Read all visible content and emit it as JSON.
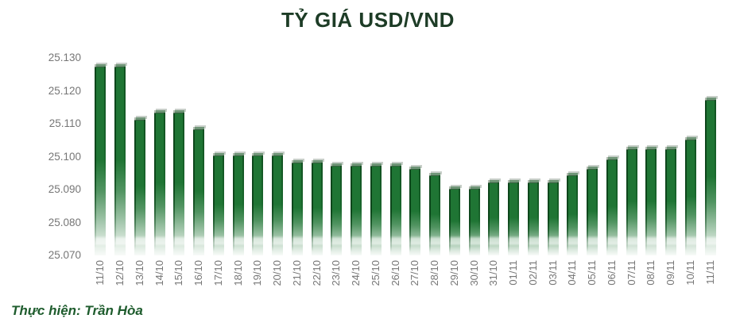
{
  "chart_data": {
    "type": "bar",
    "title": "TỶ GIÁ USD/VND",
    "categories": [
      "11/10",
      "12/10",
      "13/10",
      "14/10",
      "15/10",
      "16/10",
      "17/10",
      "18/10",
      "19/10",
      "20/10",
      "21/10",
      "22/10",
      "23/10",
      "24/10",
      "25/10",
      "26/10",
      "27/10",
      "28/10",
      "29/10",
      "30/10",
      "31/10",
      "01/11",
      "02/11",
      "03/11",
      "04/11",
      "05/11",
      "06/11",
      "07/11",
      "08/11",
      "09/11",
      "10/11",
      "11/11"
    ],
    "values": [
      25.128,
      25.128,
      25.112,
      25.114,
      25.114,
      25.109,
      25.101,
      25.101,
      25.101,
      25.101,
      25.099,
      25.099,
      25.098,
      25.098,
      25.098,
      25.098,
      25.097,
      25.095,
      25.091,
      25.091,
      25.093,
      25.093,
      25.093,
      25.093,
      25.095,
      25.097,
      25.1,
      25.103,
      25.103,
      25.103,
      25.106,
      25.118
    ],
    "ylim": [
      25.07,
      25.13
    ],
    "ytick_step": 0.01,
    "yticks": [
      "25.070",
      "25.080",
      "25.090",
      "25.100",
      "25.110",
      "25.120",
      "25.130"
    ],
    "grid": false,
    "legend": null,
    "bar_color": "#1f7534",
    "bar_edge_color": "#0d461b",
    "title_color": "#1d3c26",
    "axis_label_color": "#767676",
    "credit_color": "#1e5c2d"
  },
  "footer": {
    "credit": "Thực hiện: Trần Hòa"
  }
}
